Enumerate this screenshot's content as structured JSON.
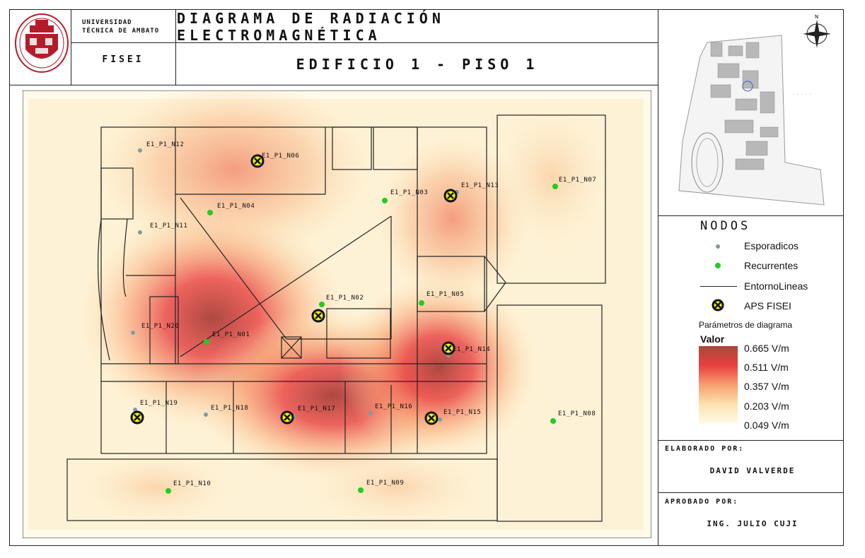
{
  "header": {
    "title": "DIAGRAMA DE RADIACIÓN ELECTROMAGNÉTICA",
    "subtitle": "EDIFICIO 1 - PISO 1",
    "university_line1": "UNIVERSIDAD",
    "university_line2": "TÉCNICA DE AMBATO",
    "faculty": "FISEI"
  },
  "legend": {
    "title": "NODOS",
    "items": [
      {
        "label": "Esporadicos",
        "symbol": "sporadic-dot",
        "color": "#7f9aa3"
      },
      {
        "label": "Recurrentes",
        "symbol": "recurrent-dot",
        "color": "#22cc22"
      },
      {
        "label": "EntornoLineas",
        "symbol": "line"
      },
      {
        "label": "APS FISEI",
        "symbol": "ap-marker",
        "color": "#f2f20a"
      }
    ],
    "params_title": "Parámetros de diagrama",
    "value_title": "Valor",
    "scale": [
      "0.665 V/m",
      "0.511 V/m",
      "0.357 V/m",
      "0.203 V/m",
      "0.049 V/m"
    ],
    "scale_colors": [
      "#a8483a",
      "#e84040",
      "#f7a070",
      "#fbe3b0",
      "#fffbe8"
    ]
  },
  "credits": {
    "prepared_label": "ELABORADO POR:",
    "prepared_name": "DAVID VALVERDE",
    "approved_label": "APROBADO POR:",
    "approved_name": "ING. JULIO CUJI"
  },
  "nodes": [
    {
      "id": "E1_P1_N12",
      "label": "E1_P1_N12"
    },
    {
      "id": "E1_P1_N06",
      "label": "E1_P1_N06"
    },
    {
      "id": "E1_P1_N04",
      "label": "E1_P1_N04"
    },
    {
      "id": "E1_P1_N03",
      "label": "E1_P1_N03"
    },
    {
      "id": "E1_P1_N13",
      "label": "E1_P1_N13"
    },
    {
      "id": "E1_P1_N07",
      "label": "E1_P1_N07"
    },
    {
      "id": "E1_P1_N11",
      "label": "E1_P1_N11"
    },
    {
      "id": "E1_P1_N02",
      "label": "E1_P1_N02"
    },
    {
      "id": "E1_P1_N05",
      "label": "E1_P1_N05"
    },
    {
      "id": "E1_P1_N20",
      "label": "E1_P1_N20"
    },
    {
      "id": "E1_P1_N01",
      "label": "E1_P1_N01"
    },
    {
      "id": "E1_P1_N14",
      "label": "E1_P1_N14"
    },
    {
      "id": "E1_P1_N19",
      "label": "E1_P1_N19"
    },
    {
      "id": "E1_P1_N18",
      "label": "E1_P1_N18"
    },
    {
      "id": "E1_P1_N17",
      "label": "E1_P1_N17"
    },
    {
      "id": "E1_P1_N16",
      "label": "E1_P1_N16"
    },
    {
      "id": "E1_P1_N15",
      "label": "E1_P1_N15"
    },
    {
      "id": "E1_P1_N08",
      "label": "E1_P1_N08"
    },
    {
      "id": "E1_P1_N10",
      "label": "E1_P1_N10"
    },
    {
      "id": "E1_P1_N09",
      "label": "E1_P1_N09"
    }
  ],
  "icons": {
    "compass": "compass-rose-icon",
    "logo": "university-seal-logo"
  }
}
